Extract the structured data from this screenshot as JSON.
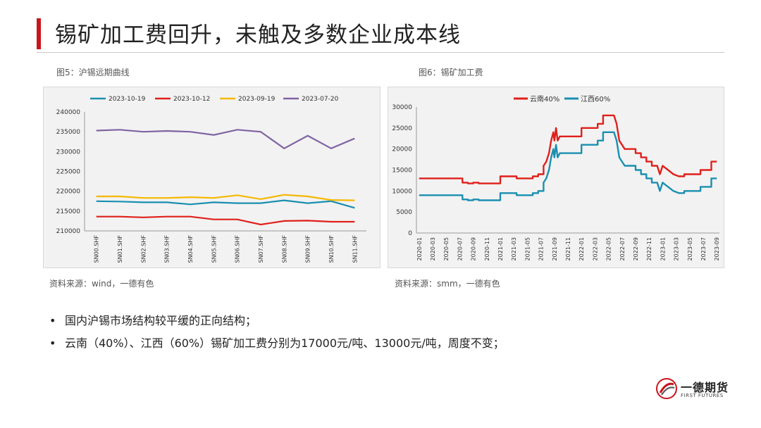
{
  "header": {
    "title": "锡矿加工费回升，未触及多数企业成本线"
  },
  "figures": {
    "left_caption": "图5：沪锡远期曲线",
    "right_caption": "图6：锡矿加工费",
    "left_source": "资料来源：wind，一德有色",
    "right_source": "资料来源：smm，一德有色"
  },
  "bullets": [
    {
      "marker": "•",
      "text": "国内沪锡市场结构较平缓的正向结构；"
    },
    {
      "marker": "•",
      "text": "云南（40%）、江西（60%）锡矿加工费分别为17000元/吨、13000元/吨，周度不变；"
    }
  ],
  "logo": {
    "name": "一德期货",
    "en": "FIRST FUTURES"
  },
  "chart_data": [
    {
      "type": "line",
      "categories": [
        "SN00.SHF",
        "SN01.SHF",
        "SN02.SHF",
        "SN03.SHF",
        "SN04.SHF",
        "SN05.SHF",
        "SN06.SHF",
        "SN07.SHF",
        "SN08.SHF",
        "SN09.SHF",
        "SN10.SHF",
        "SN11.SHF"
      ],
      "ylim": [
        210000,
        240000
      ],
      "yticks": [
        210000,
        215000,
        220000,
        225000,
        230000,
        235000,
        240000
      ],
      "legend": "top",
      "series": [
        {
          "name": "2023-10-19",
          "color": "#1a8fb0",
          "values": [
            217500,
            217400,
            217200,
            217200,
            216700,
            217200,
            217000,
            217000,
            217700,
            217000,
            217500,
            215800
          ]
        },
        {
          "name": "2023-10-12",
          "color": "#e0201b",
          "values": [
            213600,
            213600,
            213400,
            213600,
            213600,
            212900,
            212900,
            211600,
            212500,
            212600,
            212300,
            212300
          ]
        },
        {
          "name": "2023-09-19",
          "color": "#f5b800",
          "values": [
            218700,
            218700,
            218300,
            218300,
            218500,
            218300,
            219000,
            218000,
            219100,
            218700,
            217800,
            217700
          ]
        },
        {
          "name": "2023-07-20",
          "color": "#8064a2",
          "values": [
            235300,
            235500,
            235000,
            235200,
            235000,
            234200,
            235500,
            235000,
            230800,
            234000,
            230800,
            233300
          ]
        }
      ]
    },
    {
      "type": "line",
      "x_start": "2020-01",
      "categories": [
        "2020-01",
        "2020-03",
        "2020-05",
        "2020-07",
        "2020-09",
        "2020-11",
        "2021-01",
        "2021-03",
        "2021-05",
        "2021-07",
        "2021-09",
        "2021-11",
        "2022-01",
        "2022-03",
        "2022-05",
        "2022-07",
        "2022-09",
        "2022-11",
        "2023-01",
        "2023-03",
        "2023-05",
        "2023-07",
        "2023-09"
      ],
      "ylim": [
        0,
        30000
      ],
      "yticks": [
        0,
        5000,
        10000,
        15000,
        20000,
        25000,
        30000
      ],
      "legend": "top",
      "series": [
        {
          "name": "云南40%",
          "color": "#e0201b",
          "points": [
            [
              0,
              13000
            ],
            [
              8,
              13000
            ],
            [
              8,
              12000
            ],
            [
              9,
              12000
            ],
            [
              9,
              11800
            ],
            [
              10,
              11800
            ],
            [
              10,
              12000
            ],
            [
              11,
              12000
            ],
            [
              11,
              11800
            ],
            [
              15,
              11800
            ],
            [
              15,
              13500
            ],
            [
              18,
              13500
            ],
            [
              18,
              13000
            ],
            [
              21,
              13000
            ],
            [
              21,
              13500
            ],
            [
              22,
              13500
            ],
            [
              22,
              14000
            ],
            [
              23,
              14000
            ],
            [
              23,
              16000
            ],
            [
              23.5,
              17000
            ],
            [
              24,
              19000
            ],
            [
              24.4,
              22000
            ],
            [
              24.8,
              24000
            ],
            [
              25,
              22000
            ],
            [
              25.3,
              25000
            ],
            [
              25.6,
              22000
            ],
            [
              26,
              23000
            ],
            [
              30,
              23000
            ],
            [
              30,
              25000
            ],
            [
              33,
              25000
            ],
            [
              33,
              26000
            ],
            [
              34,
              26000
            ],
            [
              34,
              28000
            ],
            [
              36,
              28000
            ],
            [
              36.5,
              26000
            ],
            [
              37,
              22000
            ],
            [
              38,
              20000
            ],
            [
              40,
              20000
            ],
            [
              40,
              19000
            ],
            [
              41,
              19000
            ],
            [
              41,
              18000
            ],
            [
              42,
              18000
            ],
            [
              42,
              17000
            ],
            [
              43,
              17000
            ],
            [
              43,
              16000
            ],
            [
              44,
              16000
            ],
            [
              44.5,
              14000
            ],
            [
              45,
              16000
            ],
            [
              46,
              15000
            ],
            [
              47,
              14000
            ],
            [
              48,
              13500
            ],
            [
              49,
              13500
            ],
            [
              49,
              14000
            ],
            [
              52,
              14000
            ],
            [
              52,
              15000
            ],
            [
              54,
              15000
            ],
            [
              54,
              17000
            ],
            [
              55,
              17000
            ]
          ]
        },
        {
          "name": "江西60%",
          "color": "#1a8fb0",
          "points": [
            [
              0,
              9000
            ],
            [
              8,
              9000
            ],
            [
              8,
              8000
            ],
            [
              9,
              8000
            ],
            [
              9,
              7800
            ],
            [
              10,
              7800
            ],
            [
              10,
              8000
            ],
            [
              11,
              8000
            ],
            [
              11,
              7800
            ],
            [
              15,
              7800
            ],
            [
              15,
              9500
            ],
            [
              18,
              9500
            ],
            [
              18,
              9000
            ],
            [
              21,
              9000
            ],
            [
              21,
              9500
            ],
            [
              22,
              9500
            ],
            [
              22,
              10000
            ],
            [
              23,
              10000
            ],
            [
              23,
              12000
            ],
            [
              23.5,
              13000
            ],
            [
              24,
              15000
            ],
            [
              24.4,
              18000
            ],
            [
              24.8,
              20000
            ],
            [
              25,
              18000
            ],
            [
              25.3,
              21000
            ],
            [
              25.6,
              18000
            ],
            [
              26,
              19000
            ],
            [
              30,
              19000
            ],
            [
              30,
              21000
            ],
            [
              33,
              21000
            ],
            [
              33,
              22000
            ],
            [
              34,
              22000
            ],
            [
              34,
              24000
            ],
            [
              36,
              24000
            ],
            [
              36.5,
              22000
            ],
            [
              37,
              18000
            ],
            [
              38,
              16000
            ],
            [
              40,
              16000
            ],
            [
              40,
              15000
            ],
            [
              41,
              15000
            ],
            [
              41,
              14000
            ],
            [
              42,
              14000
            ],
            [
              42,
              13000
            ],
            [
              43,
              13000
            ],
            [
              43,
              12000
            ],
            [
              44,
              12000
            ],
            [
              44.5,
              10000
            ],
            [
              45,
              12000
            ],
            [
              46,
              11000
            ],
            [
              47,
              10000
            ],
            [
              48,
              9500
            ],
            [
              49,
              9500
            ],
            [
              49,
              10000
            ],
            [
              52,
              10000
            ],
            [
              52,
              11000
            ],
            [
              54,
              11000
            ],
            [
              54,
              13000
            ],
            [
              55,
              13000
            ]
          ]
        }
      ]
    }
  ]
}
